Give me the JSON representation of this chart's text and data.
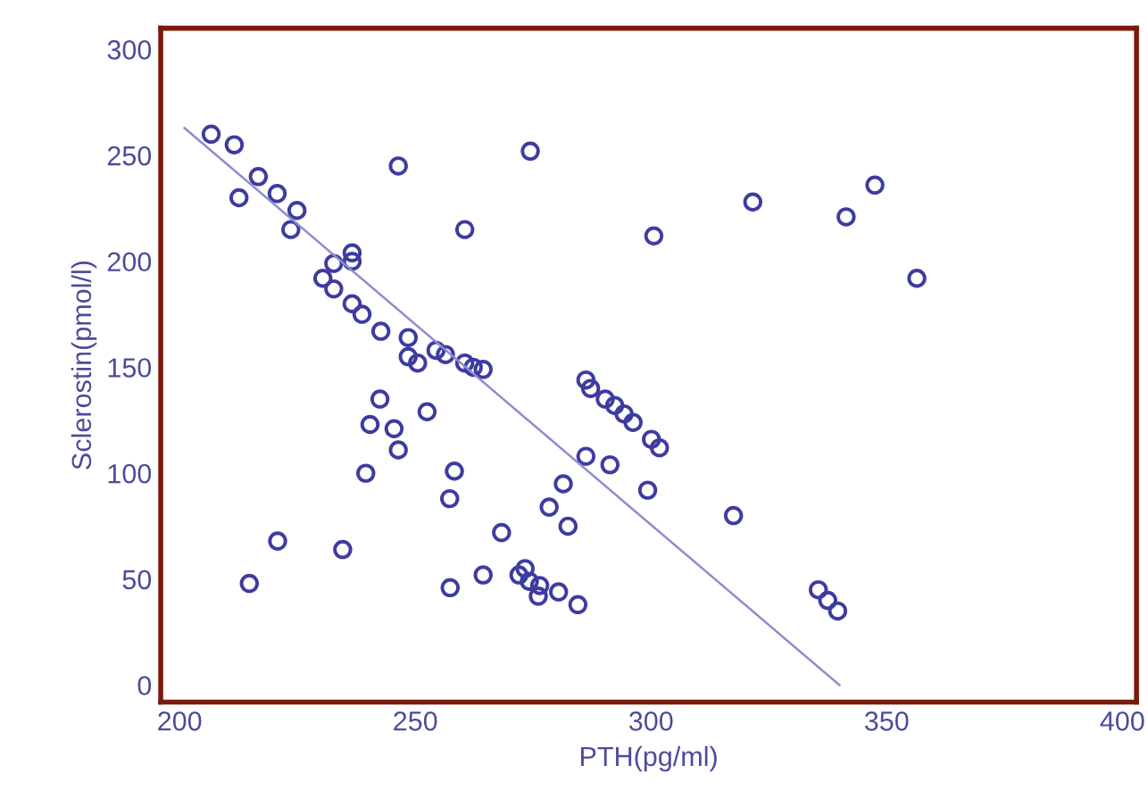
{
  "chart_data": {
    "type": "scatter",
    "xlabel": "PTH(pg/ml)",
    "ylabel": "Sclerostin(pmol/l)",
    "xlim": [
      196,
      403
    ],
    "ylim": [
      -8,
      310
    ],
    "xticks": [
      200,
      250,
      300,
      350,
      400
    ],
    "yticks": [
      0,
      50,
      100,
      150,
      200,
      250,
      300
    ],
    "grid": false,
    "series": [
      {
        "marker": "circle",
        "color": "#3c3ca0",
        "x": [
          206.7,
          211.6,
          212.6,
          216.7,
          220.7,
          224.9,
          223.6,
          246.4,
          260.5,
          236.6,
          236.6,
          232.7,
          230.4,
          232.7,
          236.6,
          238.7,
          242.7,
          248.5,
          248.5,
          250.5,
          254.4,
          256.4,
          260.5,
          262.3,
          264.4,
          242.5,
          252.5,
          240.4,
          245.5,
          246.4,
          239.5,
          258.3,
          257.3,
          268.3,
          220.8,
          234.6,
          214.8,
          257.4,
          264.4,
          274.4,
          300.6,
          321.6,
          286.2,
          287.2,
          290.3,
          292.3,
          294.3,
          296.2,
          300.1,
          301.8,
          286.2,
          291.3,
          299.3,
          317.5,
          281.4,
          278.4,
          282.4,
          273.3,
          272,
          274.2,
          276.4,
          276.1,
          280.4,
          284.5,
          341.4,
          347.5,
          356.4,
          335.5,
          337.5,
          339.6
        ],
        "values": [
          260,
          255,
          230,
          240,
          232,
          224,
          215,
          245,
          215,
          204,
          200,
          199,
          192,
          187,
          180,
          175,
          167,
          164,
          155,
          152,
          158,
          156,
          152,
          150,
          149,
          135,
          129,
          123,
          121,
          111,
          100,
          101,
          88,
          72,
          68,
          64,
          48,
          46,
          52,
          252,
          212,
          228,
          144,
          140,
          135,
          132,
          128,
          124,
          116,
          112,
          108,
          104,
          92,
          80,
          95,
          84,
          75,
          55,
          52,
          49,
          47,
          42,
          44,
          38,
          221,
          236,
          192,
          45,
          40,
          35
        ]
      },
      {
        "type": "line",
        "color": "#8c8cd0",
        "x": [
          201,
          340
        ],
        "values": [
          263,
          0
        ]
      }
    ]
  }
}
